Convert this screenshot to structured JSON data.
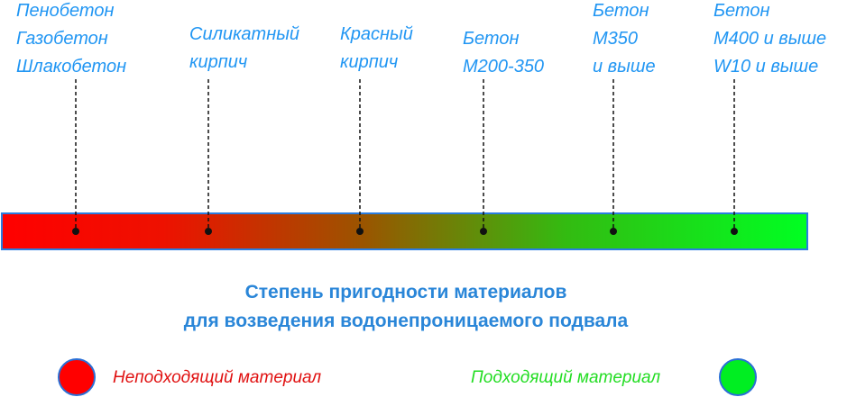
{
  "markers": [
    {
      "lines": [
        "Пенобетон",
        "Газобетон",
        "Шлакобетон"
      ]
    },
    {
      "lines": [
        "Силикатный",
        "кирпич"
      ]
    },
    {
      "lines": [
        "Красный",
        "кирпич"
      ]
    },
    {
      "lines": [
        "Бетон",
        "М200-350"
      ]
    },
    {
      "lines": [
        "Бетон",
        "М350",
        "и выше"
      ]
    },
    {
      "lines": [
        "Бетон",
        "М400 и выше",
        "W10 и выше"
      ]
    }
  ],
  "title": {
    "lines": [
      "Степень пригодности материалов",
      "для возведения водонепроницаемого подвала"
    ]
  },
  "legend": [
    {
      "label": "Неподходящий материал"
    },
    {
      "label": "Подходящий материал"
    }
  ]
}
